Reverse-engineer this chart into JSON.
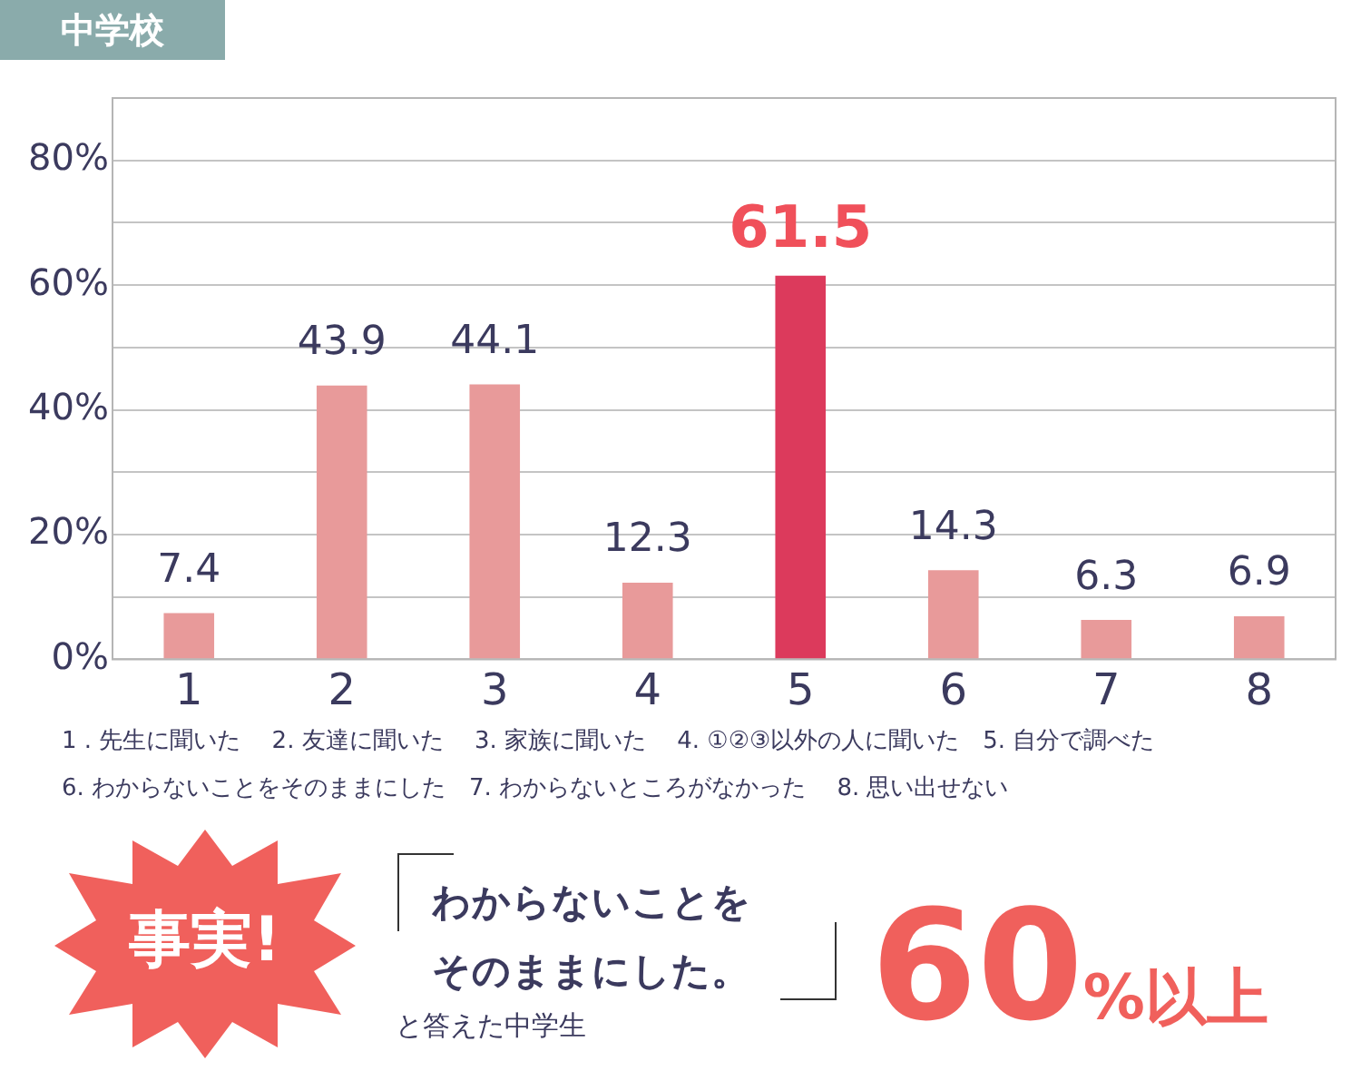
{
  "chart_data": {
    "type": "bar",
    "title": "中学校",
    "categories": [
      "1",
      "2",
      "3",
      "4",
      "5",
      "6",
      "7",
      "8"
    ],
    "values": [
      7.4,
      43.9,
      44.1,
      12.3,
      61.5,
      14.3,
      6.3,
      6.9
    ],
    "colors": [
      "#e89a9a",
      "#e89a9a",
      "#e89a9a",
      "#e89a9a",
      "#dc3a5c",
      "#e89a9a",
      "#e89a9a",
      "#e89a9a"
    ],
    "ylim": [
      0,
      90
    ],
    "yticks": [
      {
        "value": 0,
        "label": "0%"
      },
      {
        "value": 10,
        "label": null
      },
      {
        "value": 20,
        "label": "20%"
      },
      {
        "value": 30,
        "label": null
      },
      {
        "value": 40,
        "label": "40%"
      },
      {
        "value": 50,
        "label": null
      },
      {
        "value": 60,
        "label": "60%"
      },
      {
        "value": 70,
        "label": null
      },
      {
        "value": 80,
        "label": "80%"
      }
    ],
    "grid": "y",
    "data_labels": true,
    "legend": false,
    "annotations": [
      "1 . 先生に聞いた　 2. 友達に聞いた　 3. 家族に聞いた　 4. ①②③以外の人に聞いた　5. 自分で調べた",
      "6. わからないことをそのままにした　7. わからないところがなかった　 8. 思い出せない",
      "事実!",
      "わからないことを",
      "そのままにした。",
      "と答えた中学生",
      "60",
      "%以上"
    ]
  }
}
